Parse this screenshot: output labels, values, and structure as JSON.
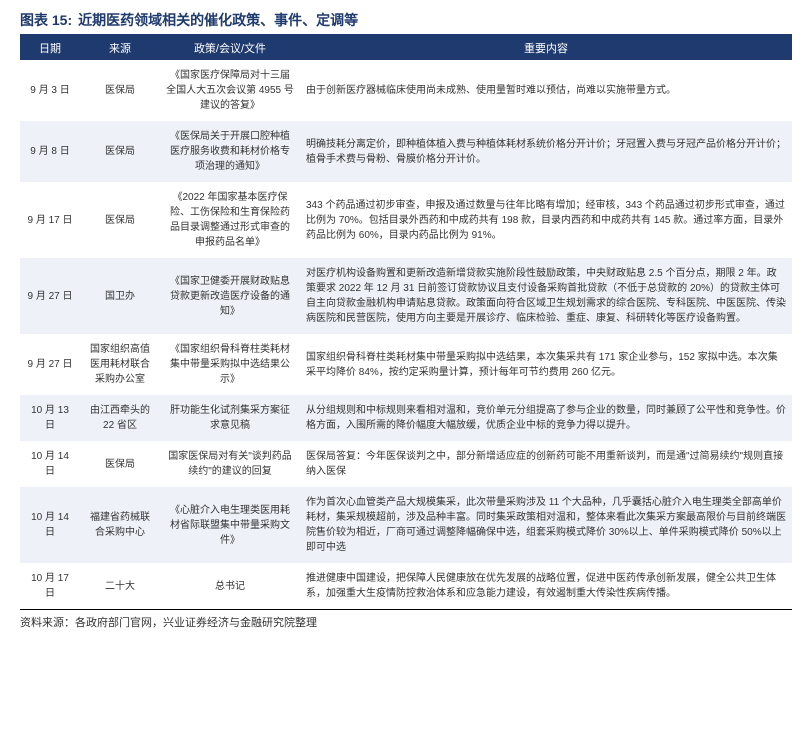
{
  "header": {
    "label": "图表 15:",
    "title": "近期医药领域相关的催化政策、事件、定调等"
  },
  "columns": {
    "date": "日期",
    "source": "来源",
    "policy": "政策/会议/文件",
    "content": "重要内容"
  },
  "rows": [
    {
      "date": "9 月 3 日",
      "source": "医保局",
      "policy": "《国家医疗保障局对十三届全国人大五次会议第 4955 号建议的答复》",
      "content": "由于创新医疗器械临床使用尚未成熟、使用量暂时难以预估，尚难以实施带量方式。"
    },
    {
      "date": "9 月 8 日",
      "source": "医保局",
      "policy": "《医保局关于开展口腔种植医疗服务收费和耗材价格专项治理的通知》",
      "content": "明确技耗分离定价，即种植体植入费与种植体耗材系统价格分开计价；牙冠置入费与牙冠产品价格分开计价；植骨手术费与骨粉、骨膜价格分开计价。"
    },
    {
      "date": "9 月 17 日",
      "source": "医保局",
      "policy": "《2022 年国家基本医疗保险、工伤保险和生育保险药品目录调整通过形式审查的申报药品名单》",
      "content": "343 个药品通过初步审查，申报及通过数量与往年比略有增加；经审核，343 个药品通过初步形式审查，通过比例为 70%。包括目录外西药和中成药共有 198 款，目录内西药和中成药共有 145 款。通过率方面，目录外药品比例为 60%，目录内药品比例为 91%。"
    },
    {
      "date": "9 月 27 日",
      "source": "国卫办",
      "policy": "《国家卫健委开展财政贴息贷款更新改造医疗设备的通知》",
      "content": "对医疗机构设备购置和更新改造新增贷款实施阶段性鼓励政策，中央财政贴息 2.5 个百分点，期限 2 年。政策要求 2022 年 12 月 31 日前签订贷款协议且支付设备采购首批贷款（不低于总贷款的 20%）的贷款主体可自主向贷款金融机构申请贴息贷款。政策面向符合区域卫生规划需求的综合医院、专科医院、中医医院、传染病医院和民营医院，使用方向主要是开展诊疗、临床检验、重症、康复、科研转化等医疗设备购置。"
    },
    {
      "date": "9 月 27 日",
      "source": "国家组织高值医用耗材联合采购办公室",
      "policy": "《国家组织骨科脊柱类耗材集中带量采购拟中选结果公示》",
      "content": "国家组织骨科脊柱类耗材集中带量采购拟中选结果，本次集采共有 171 家企业参与，152 家拟中选。本次集采平均降价 84%，按约定采购量计算，预计每年可节约费用 260 亿元。"
    },
    {
      "date": "10 月 13 日",
      "source": "由江西牵头的22 省区",
      "policy": "肝功能生化试剂集采方案征求意见稿",
      "content": "从分组规则和中标规则来看相对温和，竞价单元分组提高了参与企业的数量，同时兼顾了公平性和竞争性。价格方面，入围所需的降价幅度大幅放缓，优质企业中标的竞争力得以提升。"
    },
    {
      "date": "10 月 14 日",
      "source": "医保局",
      "policy": "国家医保局对有关\"谈判药品续约\"的建议的回复",
      "content": "医保局答复：今年医保谈判之中，部分新增适应症的创新药可能不用重新谈判，而是通\"过简易续约\"规则直接纳入医保"
    },
    {
      "date": "10 月 14 日",
      "source": "福建省药械联合采购中心",
      "policy": "《心脏介入电生理类医用耗材省际联盟集中带量采购文件》",
      "content": "作为首次心血管类产品大规模集采，此次带量采购涉及 11 个大品种，几乎囊括心脏介入电生理类全部高单价耗材，集采规模超前，涉及品种丰富。同时集采政策相对温和，整体来看此次集采方案最高限价与目前终端医院售价较为相近，厂商可通过调整降幅确保中选，组套采购模式降价 30%以上、单件采购模式降价 50%以上即可中选"
    },
    {
      "date": "10 月 17 日",
      "source": "二十大",
      "policy": "总书记",
      "content": "推进健康中国建设，把保障人民健康放在优先发展的战略位置，促进中医药传承创新发展，健全公共卫生体系，加强重大生疫情防控救治体系和应急能力建设，有效遏制重大传染性疾病传播。"
    }
  ],
  "footer": "资料来源：各政府部门官网，兴业证券经济与金融研究院整理",
  "colors": {
    "primary": "#1f3a6e",
    "row_alt": "#eef2f8",
    "text": "#333333",
    "white": "#ffffff"
  }
}
